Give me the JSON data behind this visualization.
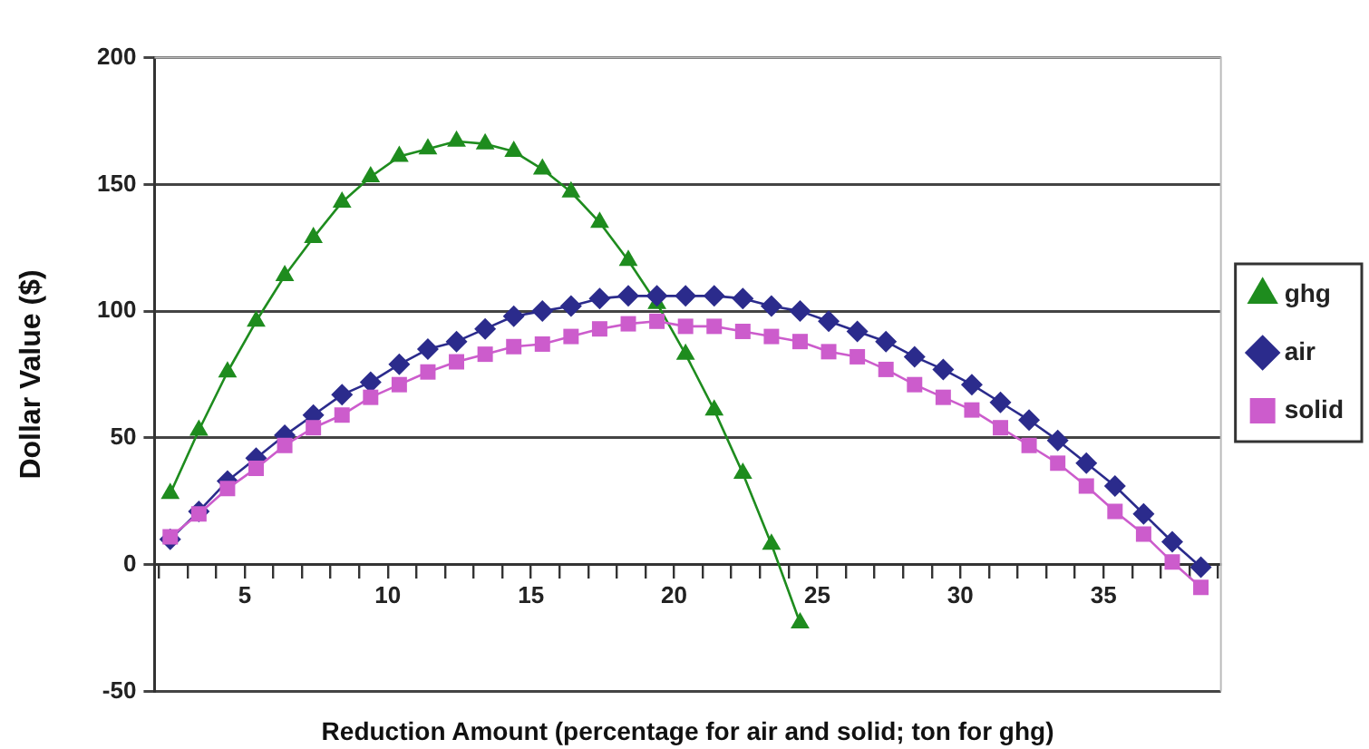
{
  "chart_data": {
    "type": "line",
    "xlabel": "Reduction Amount (percentage for air and solid; ton for ghg)",
    "ylabel": "Dollar Value ($)",
    "xlim": [
      1.85,
      39.1
    ],
    "xticks": [
      {
        "value": 2,
        "label": null
      },
      {
        "value": 3,
        "label": null
      },
      {
        "value": 4,
        "label": null
      },
      5,
      {
        "value": 6,
        "label": null
      },
      {
        "value": 7,
        "label": null
      },
      {
        "value": 8,
        "label": null
      },
      {
        "value": 9,
        "label": null
      },
      10,
      {
        "value": 11,
        "label": null
      },
      {
        "value": 12,
        "label": null
      },
      {
        "value": 13,
        "label": null
      },
      {
        "value": 14,
        "label": null
      },
      15,
      {
        "value": 16,
        "label": null
      },
      {
        "value": 17,
        "label": null
      },
      {
        "value": 18,
        "label": null
      },
      {
        "value": 19,
        "label": null
      },
      20,
      {
        "value": 21,
        "label": null
      },
      {
        "value": 22,
        "label": null
      },
      {
        "value": 23,
        "label": null
      },
      {
        "value": 24,
        "label": null
      },
      25,
      {
        "value": 26,
        "label": null
      },
      {
        "value": 27,
        "label": null
      },
      {
        "value": 28,
        "label": null
      },
      {
        "value": 29,
        "label": null
      },
      30,
      {
        "value": 31,
        "label": null
      },
      {
        "value": 32,
        "label": null
      },
      {
        "value": 33,
        "label": null
      },
      {
        "value": 34,
        "label": null
      },
      35,
      {
        "value": 36,
        "label": null
      },
      {
        "value": 37,
        "label": null
      },
      {
        "value": 38,
        "label": null
      },
      {
        "value": 39,
        "label": null
      }
    ],
    "ylim": [
      -50,
      200
    ],
    "yticks": [
      -50,
      0,
      50,
      100,
      150,
      200
    ],
    "grid": "y",
    "legend": "right",
    "line_style": "solid",
    "x": [
      2.4,
      3.4,
      4.4,
      5.4,
      6.4,
      7.4,
      8.4,
      9.4,
      10.4,
      11.4,
      12.4,
      13.4,
      14.4,
      15.4,
      16.4,
      17.4,
      18.4,
      19.4,
      20.4,
      21.4,
      22.4,
      23.4,
      24.4,
      25.4,
      26.4,
      27.4,
      28.4,
      29.4,
      30.4,
      31.4,
      32.4,
      33.4,
      34.4,
      35.4,
      36.4,
      37.4,
      38.4
    ],
    "series": [
      {
        "name": "ghg",
        "color": "#1e8c1e",
        "marker": "triangle",
        "values": [
          28,
          53,
          76,
          96,
          114,
          129,
          143,
          153,
          161,
          164,
          167,
          166,
          163,
          156,
          147,
          135,
          120,
          103,
          83,
          61,
          36,
          8,
          -23,
          null,
          null,
          null,
          null,
          null,
          null,
          null,
          null,
          null,
          null,
          null,
          null,
          null,
          null
        ]
      },
      {
        "name": "air",
        "color": "#2b2b8c",
        "marker": "diamond",
        "values": [
          10,
          21,
          33,
          42,
          51,
          59,
          67,
          72,
          79,
          85,
          88,
          93,
          98,
          100,
          102,
          105,
          106,
          106,
          106,
          106,
          105,
          102,
          100,
          96,
          92,
          88,
          82,
          77,
          71,
          64,
          57,
          49,
          40,
          31,
          20,
          9,
          -1
        ]
      },
      {
        "name": "solid",
        "color": "#cc5ccc",
        "marker": "square",
        "values": [
          11,
          20,
          30,
          38,
          47,
          54,
          59,
          66,
          71,
          76,
          80,
          83,
          86,
          87,
          90,
          93,
          95,
          96,
          94,
          94,
          92,
          90,
          88,
          84,
          82,
          77,
          71,
          66,
          61,
          54,
          47,
          40,
          31,
          21,
          12,
          1,
          -9
        ]
      }
    ]
  }
}
